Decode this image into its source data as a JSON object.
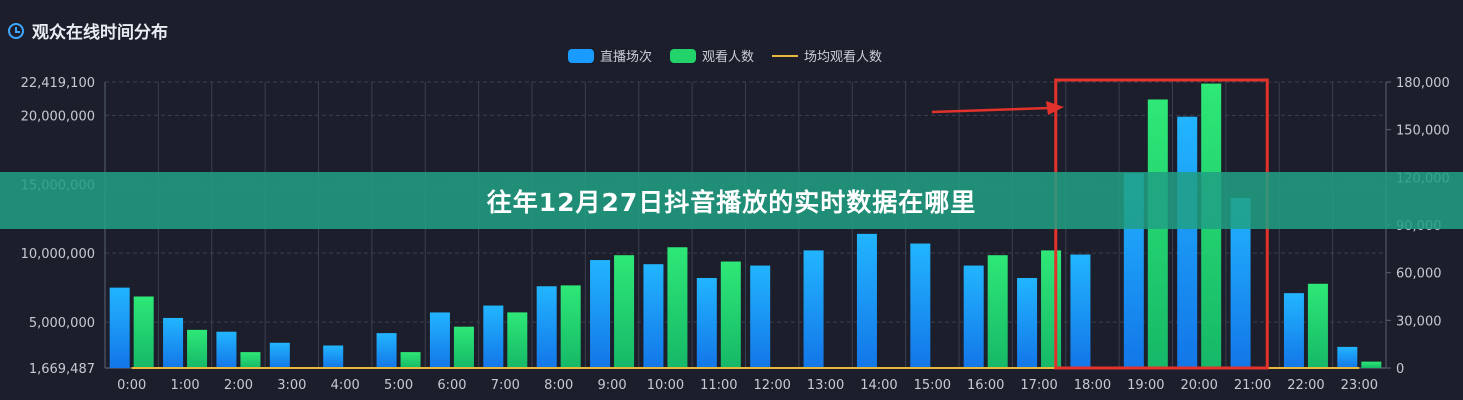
{
  "header": {
    "title": "观众在线时间分布",
    "icon": "clock-icon"
  },
  "legend": [
    {
      "label": "直播场次",
      "color": "#1a9bff",
      "kind": "bar"
    },
    {
      "label": "观看人数",
      "color": "#22d36a",
      "kind": "bar"
    },
    {
      "label": "场均观看人数",
      "color": "#e6b93a",
      "kind": "line"
    }
  ],
  "banner": {
    "text": "往年12月27日抖音播放的实时数据在哪里"
  },
  "chart_data": {
    "type": "bar",
    "categories": [
      "0:00",
      "1:00",
      "2:00",
      "3:00",
      "4:00",
      "5:00",
      "6:00",
      "7:00",
      "8:00",
      "9:00",
      "10:00",
      "11:00",
      "12:00",
      "13:00",
      "14:00",
      "15:00",
      "16:00",
      "17:00",
      "18:00",
      "19:00",
      "20:00",
      "21:00",
      "22:00",
      "23:00"
    ],
    "left_axis": {
      "min": 1669487,
      "max": 22419100,
      "ticks": [
        "1,669,487",
        "5,000,000",
        "10,000,000",
        "15,000,000",
        "20,000,000",
        "22,419,100"
      ],
      "tick_values": [
        1669487,
        5000000,
        10000000,
        15000000,
        20000000,
        22419100
      ]
    },
    "right_axis": {
      "min": 0,
      "max": 180000,
      "ticks": [
        "0",
        "30,000",
        "60,000",
        "90,000",
        "120,000",
        "150,000",
        "180,000"
      ],
      "tick_values": [
        0,
        30000,
        60000,
        90000,
        120000,
        150000,
        180000
      ]
    },
    "series": [
      {
        "name": "直播场次",
        "axis": "left",
        "color": "#1a9bff",
        "values": [
          7500000,
          5300000,
          4300000,
          3500000,
          3300000,
          4200000,
          5700000,
          6200000,
          7600000,
          9500000,
          9200000,
          8200000,
          9100000,
          10200000,
          11400000,
          10700000,
          9100000,
          8200000,
          9900000,
          15800000,
          19900000,
          14000000,
          7100000,
          3200000
        ]
      },
      {
        "name": "观看人数",
        "axis": "right",
        "color": "#22d36a",
        "values": [
          45000,
          24000,
          10000,
          0,
          0,
          10000,
          26000,
          35000,
          52000,
          71000,
          76000,
          67000,
          0,
          0,
          0,
          0,
          71000,
          74000,
          0,
          169000,
          179000,
          0,
          53000,
          4000
        ]
      },
      {
        "name": "场均观看人数",
        "axis": "right",
        "color": "#e6b93a",
        "values": [
          0,
          0,
          0,
          0,
          0,
          0,
          0,
          0,
          0,
          0,
          0,
          0,
          0,
          0,
          0,
          0,
          0,
          0,
          0,
          0,
          0,
          0,
          0,
          0
        ]
      }
    ],
    "grid": true,
    "legend_position": "top-center"
  }
}
